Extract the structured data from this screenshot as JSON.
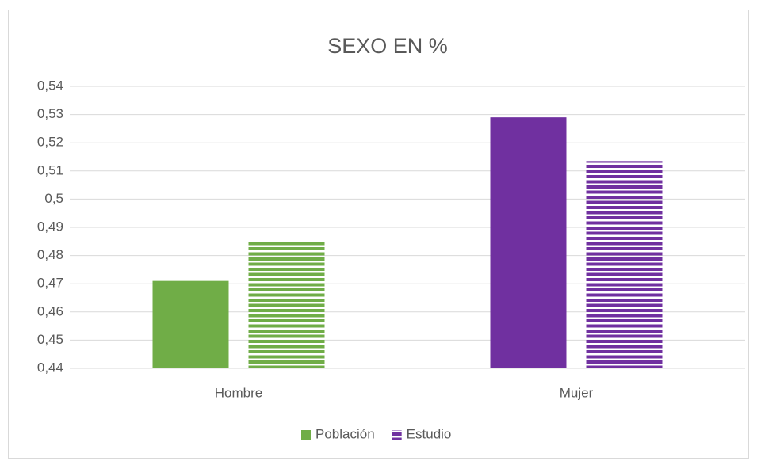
{
  "chart_data": {
    "type": "bar",
    "title": "SEXO EN %",
    "categories": [
      "Hombre",
      "Mujer"
    ],
    "series": [
      {
        "name": "Población",
        "color": "#70ad47",
        "point_colors": [
          "#70ad47",
          "#7030a0"
        ],
        "pattern": "solid",
        "values": [
          0.471,
          0.529
        ]
      },
      {
        "name": "Estudio",
        "color": "#7030a0",
        "point_colors": [
          "#70ad47",
          "#7030a0"
        ],
        "pattern": "horizontal-stripes",
        "values": [
          0.4855,
          0.5135
        ]
      }
    ],
    "ylim": [
      0.44,
      0.54
    ],
    "yticks": [
      {
        "value": 0.44,
        "label": "0,44"
      },
      {
        "value": 0.45,
        "label": "0,45"
      },
      {
        "value": 0.46,
        "label": "0,46"
      },
      {
        "value": 0.47,
        "label": "0,47"
      },
      {
        "value": 0.48,
        "label": "0,48"
      },
      {
        "value": 0.49,
        "label": "0,49"
      },
      {
        "value": 0.5,
        "label": "0,5"
      },
      {
        "value": 0.51,
        "label": "0,51"
      },
      {
        "value": 0.52,
        "label": "0,52"
      },
      {
        "value": 0.53,
        "label": "0,53"
      },
      {
        "value": 0.54,
        "label": "0,54"
      }
    ],
    "grid": true,
    "legend": "bottom"
  }
}
